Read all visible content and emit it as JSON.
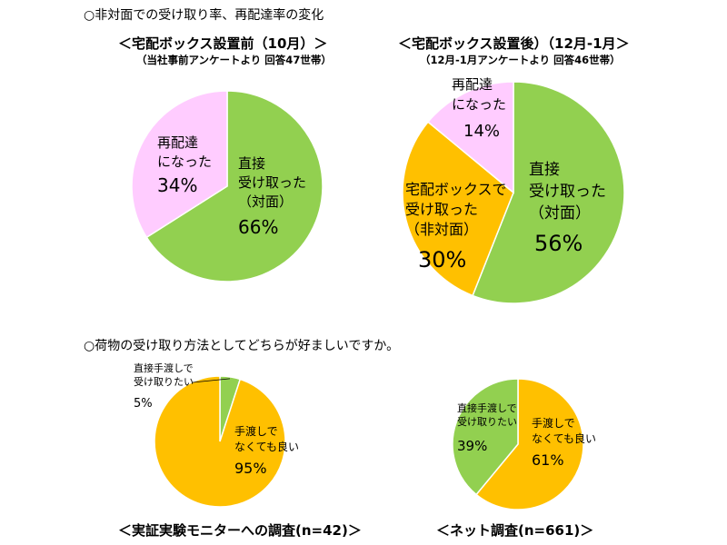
{
  "section1": {
    "title": "○非対面での受け取り率、再配達率の変化"
  },
  "section2": {
    "title": "○荷物の受け取り方法としてどちらが好ましいですか。"
  },
  "colors": {
    "green": "#92D050",
    "orange": "#FFC000",
    "pink": "#FFCCFF",
    "edge": "#ffffff"
  },
  "chart_data": [
    {
      "type": "pie",
      "title": "＜宅配ボックス設置前（10月）＞",
      "subtitle": "（当社事前アンケートより 回答47世帯）",
      "slices": [
        {
          "label": "直接\n受け取った\n（対面）",
          "value": 66,
          "value_label": "66%",
          "color": "#92D050"
        },
        {
          "label": "再配達\nになった",
          "value": 34,
          "value_label": "34%",
          "color": "#FFCCFF"
        }
      ]
    },
    {
      "type": "pie",
      "title": "＜宅配ボックス設置後）（12月-1月＞",
      "subtitle": "（12月-1月アンケートより 回答46世帯）",
      "slices": [
        {
          "label": "直接\n受け取った\n（対面）",
          "value": 56,
          "value_label": "56%",
          "color": "#92D050"
        },
        {
          "label": "宅配ボックスで\n受け取った\n（非対面）",
          "value": 30,
          "value_label": "30%",
          "color": "#FFC000"
        },
        {
          "label": "再配達\nになった",
          "value": 14,
          "value_label": "14%",
          "color": "#FFCCFF"
        }
      ]
    },
    {
      "type": "pie",
      "title": "＜実証実験モニターへの調査(n=42)＞",
      "slices": [
        {
          "label": "直接手渡しで\n受け取りたい",
          "value": 5,
          "value_label": "5%",
          "color": "#92D050"
        },
        {
          "label": "手渡しで\nなくても良い",
          "value": 95,
          "value_label": "95%",
          "color": "#FFC000"
        }
      ]
    },
    {
      "type": "pie",
      "title": "＜ネット調査(n=661)＞",
      "slices": [
        {
          "label": "手渡しで\nなくても良い",
          "value": 61,
          "value_label": "61%",
          "color": "#FFC000"
        },
        {
          "label": "直接手渡しで\n受け取りたい",
          "value": 39,
          "value_label": "39%",
          "color": "#92D050"
        }
      ]
    }
  ]
}
